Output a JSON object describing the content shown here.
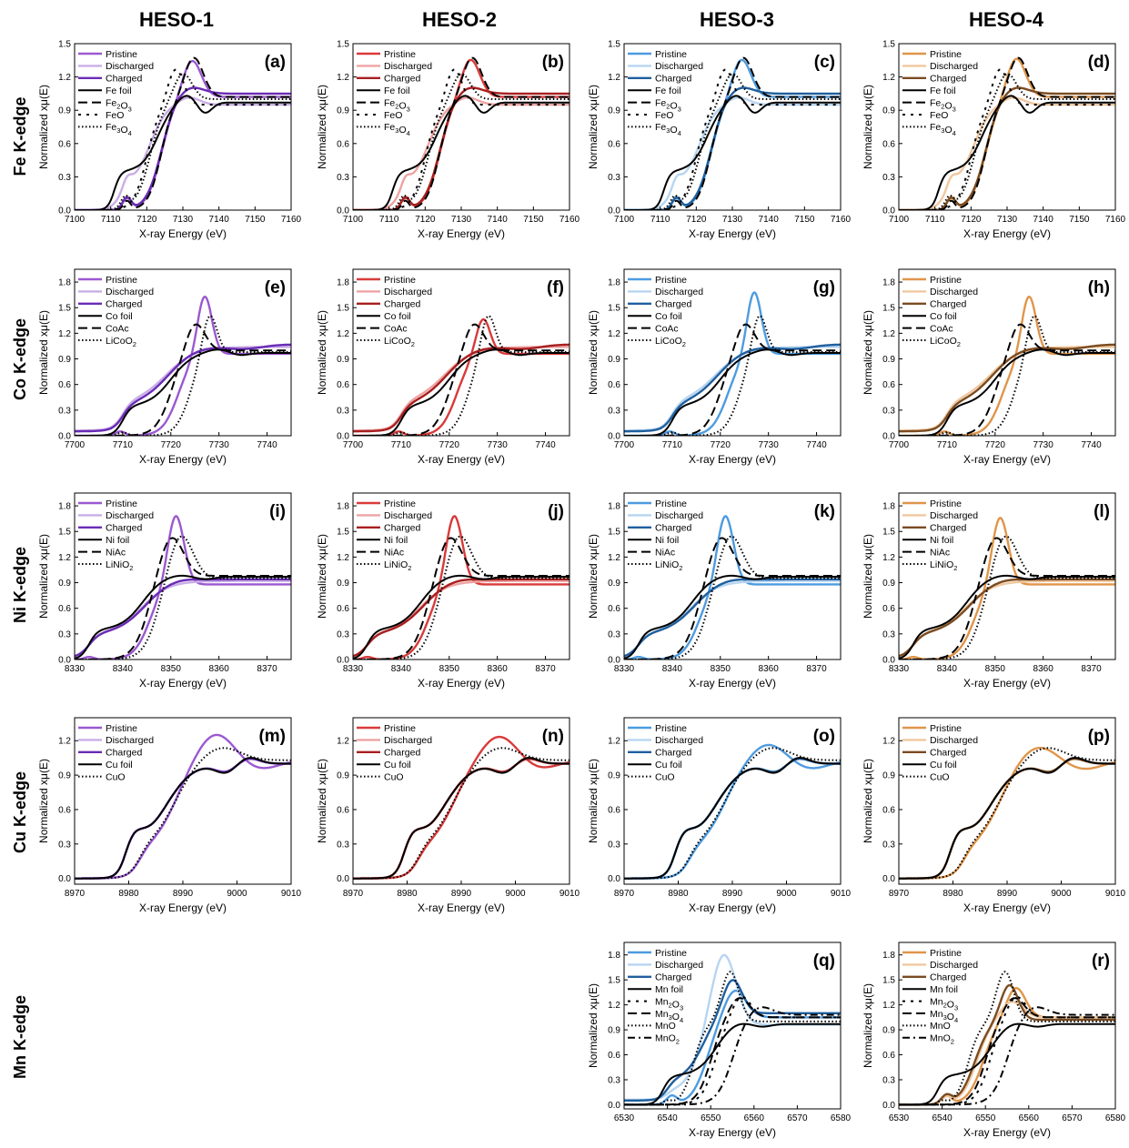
{
  "columns": [
    "HESO-1",
    "HESO-2",
    "HESO-3",
    "HESO-4"
  ],
  "rows": [
    "Fe K-edge",
    "Co K-edge",
    "Ni K-edge",
    "Cu K-edge",
    "Mn K-edge"
  ],
  "axis_text": {
    "xlabel": "X-ray Energy (eV)",
    "ylabel": "Normalized xμ(E)"
  },
  "colors": {
    "HESO-1": {
      "Pristine": "#9b59d0",
      "Discharged": "#c9aee6",
      "Charged": "#6a2bb5"
    },
    "HESO-2": {
      "Pristine": "#d93a3a",
      "Discharged": "#eea3a3",
      "Charged": "#a81f1f"
    },
    "HESO-3": {
      "Pristine": "#4d9be0",
      "Discharged": "#b7d5f1",
      "Charged": "#1f5f9e"
    },
    "HESO-4": {
      "Pristine": "#e0954a",
      "Discharged": "#f0c79f",
      "Charged": "#7a4b20"
    },
    "reference": "#000000"
  },
  "chart_data": [
    {
      "label": "(a)",
      "row": 0,
      "col": 0,
      "type": "line",
      "title": "",
      "xlabel": "X-ray Energy (eV)",
      "ylabel": "Normalized xμ(E)",
      "xlim": [
        7100,
        7160
      ],
      "ylim": [
        0,
        1.5
      ],
      "xticks": [
        7100,
        7110,
        7120,
        7130,
        7140,
        7150,
        7160
      ],
      "yticks": [
        "0.0",
        "0.3",
        "0.6",
        "0.9",
        "1.2",
        "1.5"
      ],
      "legend": [
        "Pristine",
        "Discharged",
        "Charged",
        "Fe foil",
        "Fe2O3",
        "FeO",
        "Fe3O4"
      ]
    },
    {
      "label": "(b)",
      "row": 0,
      "col": 1,
      "type": "line",
      "title": "",
      "xlabel": "X-ray Energy (eV)",
      "ylabel": "Normalized xμ(E)",
      "xlim": [
        7100,
        7160
      ],
      "ylim": [
        0,
        1.5
      ],
      "xticks": [
        7100,
        7110,
        7120,
        7130,
        7140,
        7150,
        7160
      ],
      "yticks": [
        "0.0",
        "0.3",
        "0.6",
        "0.9",
        "1.2",
        "1.5"
      ],
      "legend": [
        "Pristine",
        "Discharged",
        "Charged",
        "Fe foil",
        "Fe2O3",
        "FeO",
        "Fe3O4"
      ]
    },
    {
      "label": "(c)",
      "row": 0,
      "col": 2,
      "type": "line",
      "title": "",
      "xlabel": "X-ray Energy (eV)",
      "ylabel": "Normalized xμ(E)",
      "xlim": [
        7100,
        7160
      ],
      "ylim": [
        0,
        1.5
      ],
      "xticks": [
        7100,
        7110,
        7120,
        7130,
        7140,
        7150,
        7160
      ],
      "yticks": [
        "0.0",
        "0.3",
        "0.6",
        "0.9",
        "1.2",
        "1.5"
      ],
      "legend": [
        "Pristine",
        "Discharged",
        "Charged",
        "Fe foil",
        "Fe2O3",
        "FeO",
        "Fe3O4"
      ]
    },
    {
      "label": "(d)",
      "row": 0,
      "col": 3,
      "type": "line",
      "title": "",
      "xlabel": "X-ray Energy (eV)",
      "ylabel": "Normalized xμ(E)",
      "xlim": [
        7100,
        7160
      ],
      "ylim": [
        0,
        1.5
      ],
      "xticks": [
        7100,
        7110,
        7120,
        7130,
        7140,
        7150,
        7160
      ],
      "yticks": [
        "0.0",
        "0.3",
        "0.6",
        "0.9",
        "1.2",
        "1.5"
      ],
      "legend": [
        "Pristine",
        "Discharged",
        "Charged",
        "Fe foil",
        "Fe2O3",
        "FeO",
        "Fe3O4"
      ]
    },
    {
      "label": "(e)",
      "row": 1,
      "col": 0,
      "type": "line",
      "title": "",
      "xlabel": "X-ray Energy (eV)",
      "ylabel": "Normalized xμ(E)",
      "xlim": [
        7700,
        7745
      ],
      "ylim": [
        0,
        1.95
      ],
      "xticks": [
        7700,
        7710,
        7720,
        7730,
        7740
      ],
      "yticks": [
        "0.0",
        "0.3",
        "0.6",
        "0.9",
        "1.2",
        "1.5",
        "1.8"
      ],
      "legend": [
        "Pristine",
        "Discharged",
        "Charged",
        "Co foil",
        "CoAc",
        "LiCoO2"
      ]
    },
    {
      "label": "(f)",
      "row": 1,
      "col": 1,
      "type": "line",
      "title": "",
      "xlabel": "X-ray Energy (eV)",
      "ylabel": "Normalized xμ(E)",
      "xlim": [
        7700,
        7745
      ],
      "ylim": [
        0,
        1.95
      ],
      "xticks": [
        7700,
        7710,
        7720,
        7730,
        7740
      ],
      "yticks": [
        "0.0",
        "0.3",
        "0.6",
        "0.9",
        "1.2",
        "1.5",
        "1.8"
      ],
      "legend": [
        "Pristine",
        "Discharged",
        "Charged",
        "Co foil",
        "CoAc",
        "LiCoO2"
      ]
    },
    {
      "label": "(g)",
      "row": 1,
      "col": 2,
      "type": "line",
      "title": "",
      "xlabel": "X-ray Energy (eV)",
      "ylabel": "Normalized xμ(E)",
      "xlim": [
        7700,
        7745
      ],
      "ylim": [
        0,
        1.95
      ],
      "xticks": [
        7700,
        7710,
        7720,
        7730,
        7740
      ],
      "yticks": [
        "0.0",
        "0.3",
        "0.6",
        "0.9",
        "1.2",
        "1.5",
        "1.8"
      ],
      "legend": [
        "Pristine",
        "Discharged",
        "Charged",
        "Co foil",
        "CoAc",
        "LiCoO2"
      ]
    },
    {
      "label": "(h)",
      "row": 1,
      "col": 3,
      "type": "line",
      "title": "",
      "xlabel": "X-ray Energy (eV)",
      "ylabel": "Normalized xμ(E)",
      "xlim": [
        7700,
        7745
      ],
      "ylim": [
        0,
        1.95
      ],
      "xticks": [
        7700,
        7710,
        7720,
        7730,
        7740
      ],
      "yticks": [
        "0.0",
        "0.3",
        "0.6",
        "0.9",
        "1.2",
        "1.5",
        "1.8"
      ],
      "legend": [
        "Pristine",
        "Discharged",
        "Charged",
        "Co foil",
        "CoAc",
        "LiCoO2"
      ]
    },
    {
      "label": "(i)",
      "row": 2,
      "col": 0,
      "type": "line",
      "title": "",
      "xlabel": "X-ray Energy (eV)",
      "ylabel": "Normalized xμ(E)",
      "xlim": [
        8330,
        8375
      ],
      "ylim": [
        0,
        1.95
      ],
      "xticks": [
        8330,
        8340,
        8350,
        8360,
        8370
      ],
      "yticks": [
        "0.0",
        "0.3",
        "0.6",
        "0.9",
        "1.2",
        "1.5",
        "1.8"
      ],
      "legend": [
        "Pristine",
        "Discharged",
        "Charged",
        "Ni foil",
        "NiAc",
        "LiNiO2"
      ]
    },
    {
      "label": "(j)",
      "row": 2,
      "col": 1,
      "type": "line",
      "title": "",
      "xlabel": "X-ray Energy (eV)",
      "ylabel": "Normalized xμ(E)",
      "xlim": [
        8330,
        8375
      ],
      "ylim": [
        0,
        1.95
      ],
      "xticks": [
        8330,
        8340,
        8350,
        8360,
        8370
      ],
      "yticks": [
        "0.0",
        "0.3",
        "0.6",
        "0.9",
        "1.2",
        "1.5",
        "1.8"
      ],
      "legend": [
        "Pristine",
        "Discharged",
        "Charged",
        "Ni foil",
        "NiAc",
        "LiNiO2"
      ]
    },
    {
      "label": "(k)",
      "row": 2,
      "col": 2,
      "type": "line",
      "title": "",
      "xlabel": "X-ray Energy (eV)",
      "ylabel": "Normalized xμ(E)",
      "xlim": [
        8330,
        8375
      ],
      "ylim": [
        0,
        1.95
      ],
      "xticks": [
        8330,
        8340,
        8350,
        8360,
        8370
      ],
      "yticks": [
        "0.0",
        "0.3",
        "0.6",
        "0.9",
        "1.2",
        "1.5",
        "1.8"
      ],
      "legend": [
        "Pristine",
        "Discharged",
        "Charged",
        "Ni foil",
        "NiAc",
        "LiNiO2"
      ]
    },
    {
      "label": "(l)",
      "row": 2,
      "col": 3,
      "type": "line",
      "title": "",
      "xlabel": "X-ray Energy (eV)",
      "ylabel": "Normalized xμ(E)",
      "xlim": [
        8330,
        8375
      ],
      "ylim": [
        0,
        1.95
      ],
      "xticks": [
        8330,
        8340,
        8350,
        8360,
        8370
      ],
      "yticks": [
        "0.0",
        "0.3",
        "0.6",
        "0.9",
        "1.2",
        "1.5",
        "1.8"
      ],
      "legend": [
        "Pristine",
        "Discharged",
        "Charged",
        "Ni foil",
        "NiAc",
        "LiNiO2"
      ]
    },
    {
      "label": "(m)",
      "row": 3,
      "col": 0,
      "type": "line",
      "title": "",
      "xlabel": "X-ray Energy (eV)",
      "ylabel": "Normalized xμ(E)",
      "xlim": [
        8970,
        9010
      ],
      "ylim": [
        -0.05,
        1.4
      ],
      "xticks": [
        8970,
        8980,
        8990,
        9000,
        9010
      ],
      "yticks": [
        "0.0",
        "0.3",
        "0.6",
        "0.9",
        "1.2"
      ],
      "legend": [
        "Pristine",
        "Discharged",
        "Charged",
        "Cu foil",
        "CuO"
      ]
    },
    {
      "label": "(n)",
      "row": 3,
      "col": 1,
      "type": "line",
      "title": "",
      "xlabel": "X-ray Energy (eV)",
      "ylabel": "Normalized xμ(E)",
      "xlim": [
        8970,
        9010
      ],
      "ylim": [
        -0.05,
        1.4
      ],
      "xticks": [
        8970,
        8980,
        8990,
        9000,
        9010
      ],
      "yticks": [
        "0.0",
        "0.3",
        "0.6",
        "0.9",
        "1.2"
      ],
      "legend": [
        "Pristine",
        "Discharged",
        "Charged",
        "Cu foil",
        "CuO"
      ]
    },
    {
      "label": "(o)",
      "row": 3,
      "col": 2,
      "type": "line",
      "title": "",
      "xlabel": "X-ray Energy (eV)",
      "ylabel": "Normalized xμ(E)",
      "xlim": [
        8970,
        9010
      ],
      "ylim": [
        -0.05,
        1.4
      ],
      "xticks": [
        8970,
        8980,
        8990,
        9000,
        9010
      ],
      "yticks": [
        "0.0",
        "0.3",
        "0.6",
        "0.9",
        "1.2"
      ],
      "legend": [
        "Pristine",
        "Discharged",
        "Charged",
        "Cu foil",
        "CuO"
      ]
    },
    {
      "label": "(p)",
      "row": 3,
      "col": 3,
      "type": "line",
      "title": "",
      "xlabel": "X-ray Energy (eV)",
      "ylabel": "Normalized xμ(E)",
      "xlim": [
        8970,
        9010
      ],
      "ylim": [
        -0.05,
        1.4
      ],
      "xticks": [
        8970,
        8980,
        8990,
        9000,
        9010
      ],
      "yticks": [
        "0.0",
        "0.3",
        "0.6",
        "0.9",
        "1.2"
      ],
      "legend": [
        "Pristine",
        "Discharged",
        "Charged",
        "Cu foil",
        "CuO"
      ]
    },
    {
      "label": "(q)",
      "row": 4,
      "col": 2,
      "type": "line",
      "title": "",
      "xlabel": "X-ray Energy (eV)",
      "ylabel": "Normalized xμ(E)",
      "xlim": [
        6530,
        6580
      ],
      "ylim": [
        -0.05,
        1.95
      ],
      "xticks": [
        6530,
        6540,
        6550,
        6560,
        6570,
        6580
      ],
      "yticks": [
        "0.0",
        "0.3",
        "0.6",
        "0.9",
        "1.2",
        "1.5",
        "1.8"
      ],
      "legend": [
        "Pristine",
        "Discharged",
        "Charged",
        "Mn foil",
        "Mn2O3",
        "Mn3O4",
        "MnO",
        "MnO2"
      ]
    },
    {
      "label": "(r)",
      "row": 4,
      "col": 3,
      "type": "line",
      "title": "",
      "xlabel": "X-ray Energy (eV)",
      "ylabel": "Normalized xμ(E)",
      "xlim": [
        6530,
        6580
      ],
      "ylim": [
        -0.05,
        1.95
      ],
      "xticks": [
        6530,
        6540,
        6550,
        6560,
        6570,
        6580
      ],
      "yticks": [
        "0.0",
        "0.3",
        "0.6",
        "0.9",
        "1.2",
        "1.5",
        "1.8"
      ],
      "legend": [
        "Pristine",
        "Discharged",
        "Charged",
        "Mn foil",
        "Mn2O3",
        "Mn3O4",
        "MnO",
        "MnO2"
      ]
    }
  ]
}
